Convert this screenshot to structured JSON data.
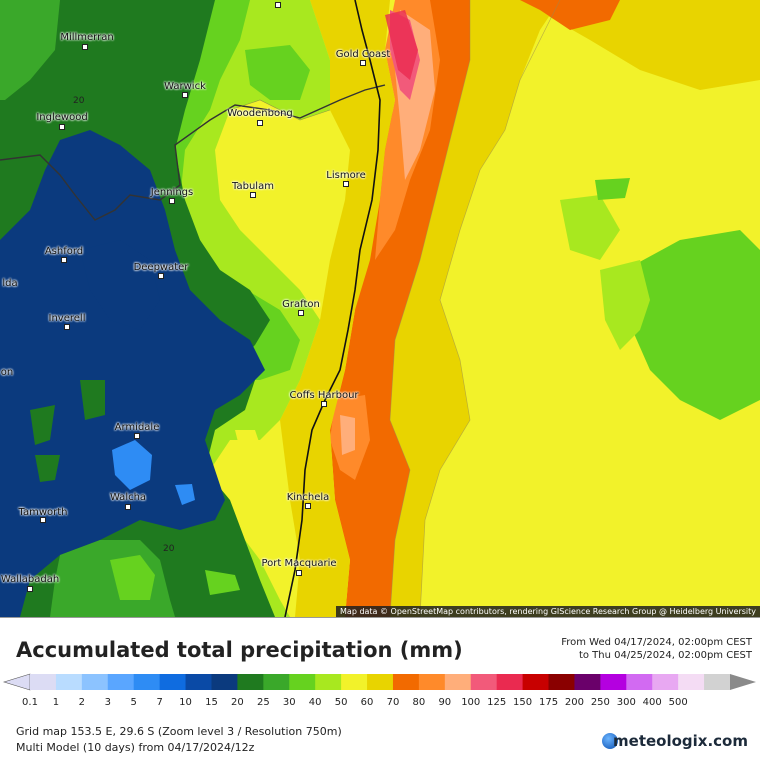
{
  "title": "Accumulated total precipitation (mm)",
  "period": {
    "from": "From Wed 04/17/2024, 02:00pm CEST",
    "to": "to Thu 04/25/2024, 02:00pm CEST"
  },
  "legend": {
    "labels": [
      "0.1",
      "1",
      "2",
      "3",
      "5",
      "7",
      "10",
      "15",
      "20",
      "25",
      "30",
      "40",
      "50",
      "60",
      "70",
      "80",
      "90",
      "100",
      "125",
      "150",
      "175",
      "200",
      "250",
      "300",
      "400",
      "500"
    ],
    "colors": [
      "#dcdcf4",
      "#b9dcff",
      "#8cc3ff",
      "#5aa6ff",
      "#2e8cf4",
      "#0f6ce0",
      "#0a4aa6",
      "#0b3a7e",
      "#1f7a1f",
      "#3aa82a",
      "#66d21f",
      "#a8e81f",
      "#f2f22a",
      "#e8d400",
      "#f26a00",
      "#ff8a2a",
      "#ffae7a",
      "#f25a7a",
      "#ea2a50",
      "#c80000",
      "#8a0000",
      "#6a006a",
      "#b400e0",
      "#d26af2",
      "#e8a8f2",
      "#f4dcf4",
      "#d2d2d2"
    ]
  },
  "meta": {
    "grid": "Grid map 153.5 E, 29.6 S (Zoom level 3 / Resolution 750m)",
    "model": "Multi Model (10 days) from  04/17/2024/12z"
  },
  "brand": "meteologix.com",
  "attribution": "Map data © OpenStreetMap contributors, rendering GIScience Research Group @ Heidelberg University",
  "places": {
    "millmerran": "Millmerran",
    "warwick": "Warwick",
    "inglewood": "Inglewood",
    "woodenbong": "Woodenbong",
    "gold_coast": "Gold Coast",
    "lismore": "Lismore",
    "tabulam": "Tabulam",
    "jennings": "Jennings",
    "ashford": "Ashford",
    "deepwater": "Deepwater",
    "alda": "lda",
    "inverell": "Inverell",
    "grafton": "Grafton",
    "on": "on",
    "coffs_harbour": "Coffs Harbour",
    "armidale": "Armidale",
    "walcha": "Walcha",
    "tamworth": "Tamworth",
    "kinchela": "Kinchela",
    "port_macquarie": "Port Macquarie",
    "wallabadah": "Wallabadah"
  },
  "contour_labels": {
    "c1": "20",
    "c2": "20"
  },
  "icons": {
    "brand": "meteologix-globe-icon",
    "arrow_left": "legend-left-arrow-icon",
    "arrow_right": "legend-right-arrow-icon"
  }
}
